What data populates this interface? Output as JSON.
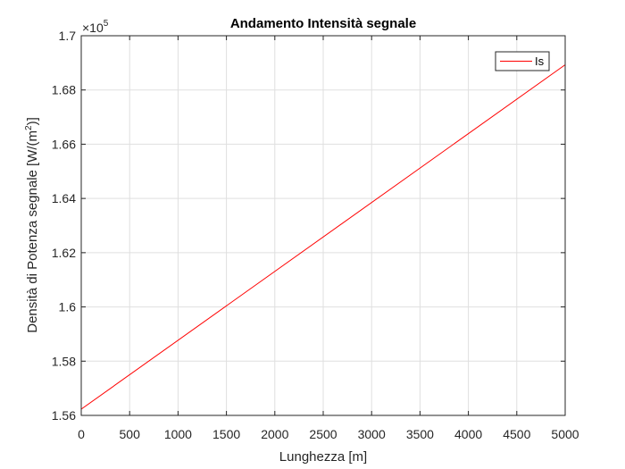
{
  "chart_data": {
    "type": "line",
    "title": "Andamento Intensità segnale",
    "xlabel": "Lunghezza [m]",
    "ylabel_main": "Densità di Potenza segnale [W/(m",
    "ylabel_sup": "2",
    "ylabel_end": ")]",
    "y_exponent_base": "×10",
    "y_exponent_power": "5",
    "xlim": [
      0,
      5000
    ],
    "ylim": [
      1.56,
      1.7
    ],
    "x_ticks": [
      0,
      500,
      1000,
      1500,
      2000,
      2500,
      3000,
      3500,
      4000,
      4500,
      5000
    ],
    "x_tick_labels": [
      "0",
      "500",
      "1000",
      "1500",
      "2000",
      "2500",
      "3000",
      "3500",
      "4000",
      "4500",
      "5000"
    ],
    "y_ticks": [
      1.56,
      1.58,
      1.6,
      1.62,
      1.64,
      1.66,
      1.68,
      1.7
    ],
    "y_tick_labels": [
      "1.56",
      "1.58",
      "1.6",
      "1.62",
      "1.64",
      "1.66",
      "1.68",
      "1.7"
    ],
    "grid": true,
    "legend_position": "top-right",
    "series": [
      {
        "name": "Is",
        "color": "#ff0000",
        "x": [
          0,
          5000
        ],
        "y": [
          1.5623,
          1.6893
        ]
      }
    ]
  }
}
